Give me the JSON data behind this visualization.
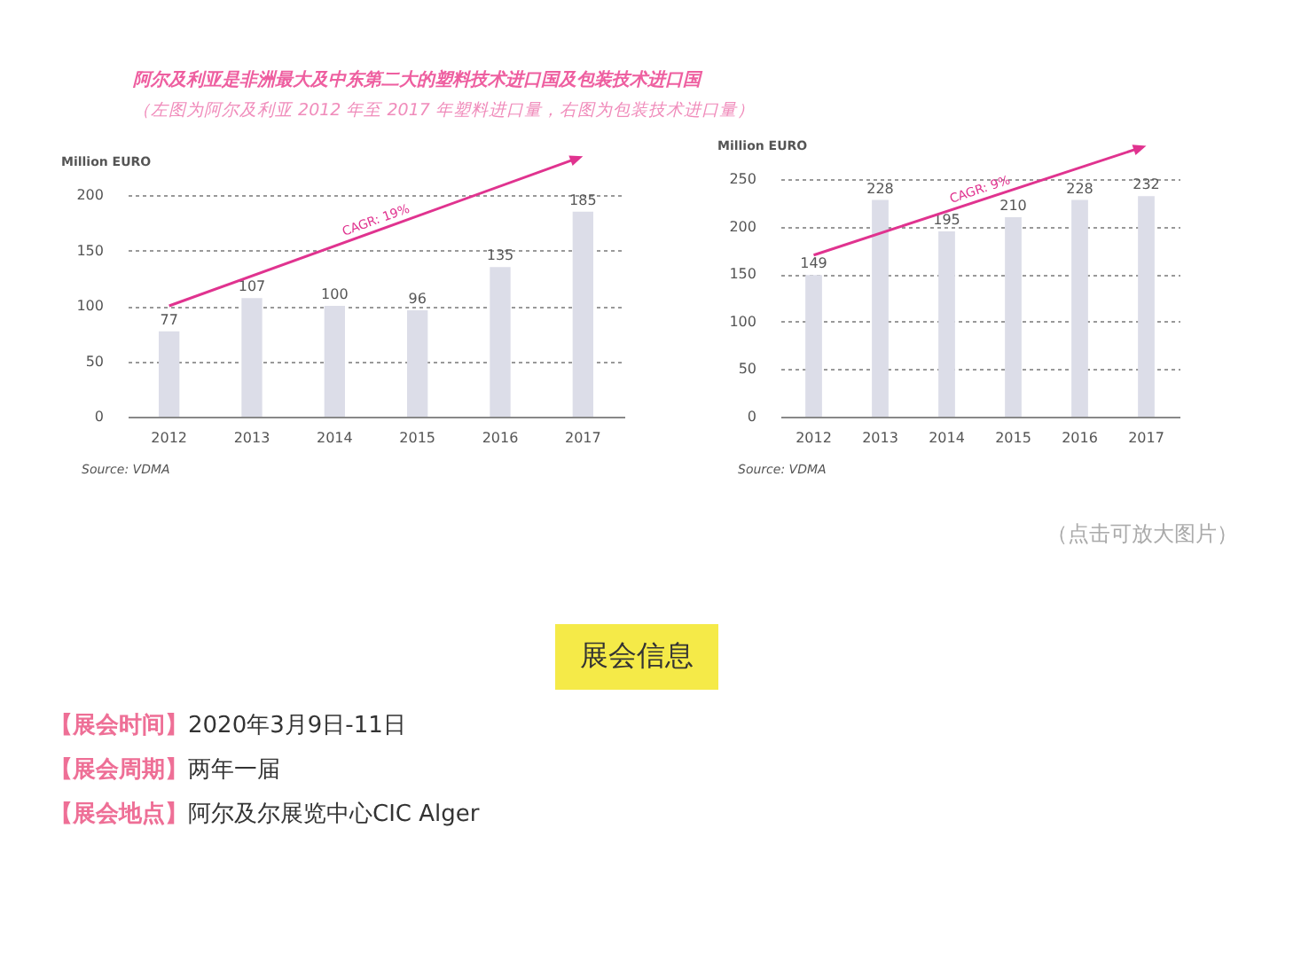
{
  "chart_data": [
    {
      "type": "bar",
      "title": "阿尔及利亚是非洲最大及中东第二大的塑料技术进口国及包装技术进口国",
      "subtitle": "（左图为阿尔及利亚 2012 年至 2017 年塑料进口量，右图为包装技术进口量）",
      "ylabel": "Million EURO",
      "categories": [
        "2012",
        "2013",
        "2014",
        "2015",
        "2016",
        "2017"
      ],
      "values": [
        77,
        107,
        100,
        96,
        135,
        185
      ],
      "color": "#dcdde8",
      "ylim": [
        0,
        200
      ],
      "yticks": [
        0,
        50,
        100,
        150,
        200
      ],
      "grid": "y",
      "data_labels": true,
      "annotations": [
        "CAGR: 19%",
        "Source: VDMA"
      ]
    },
    {
      "type": "bar",
      "ylabel": "Million EURO",
      "categories": [
        "2012",
        "2013",
        "2014",
        "2015",
        "2016",
        "2017"
      ],
      "values": [
        149,
        228,
        195,
        210,
        228,
        232
      ],
      "color": "#dcdde8",
      "ylim": [
        0,
        250
      ],
      "yticks": [
        0,
        50,
        100,
        150,
        200,
        250
      ],
      "grid": "y",
      "data_labels": true,
      "annotations": [
        "CAGR: 9%",
        "Source: VDMA"
      ]
    },
    {
      "type": "other",
      "title": "展会信息",
      "annotations": [
        "（点击可放大图片）",
        "【展会时间】2020年3月9日-11日",
        "【展会周期】两年一届",
        "【展会地点】阿尔及尔展览中心CIC Alger"
      ]
    }
  ]
}
